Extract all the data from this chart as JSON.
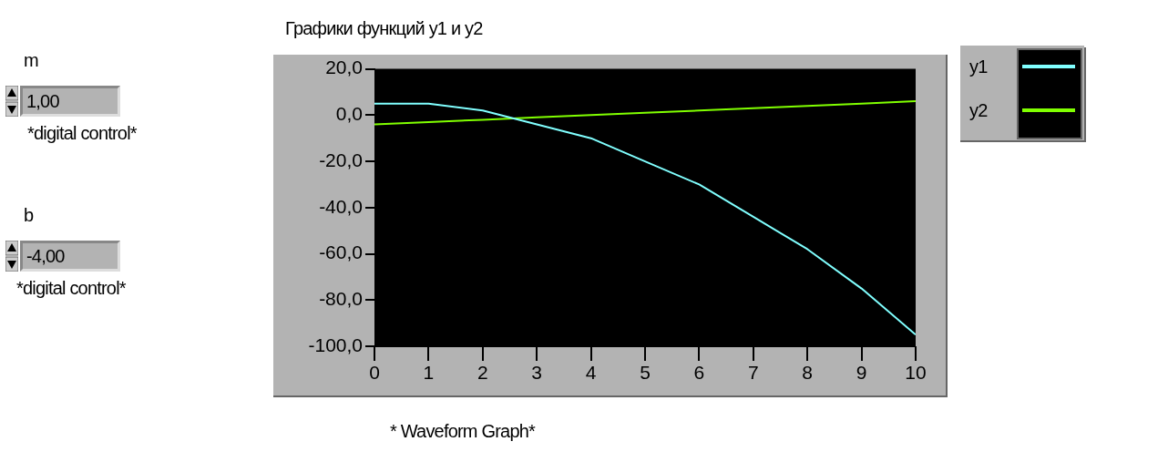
{
  "chart_data": {
    "type": "line",
    "title": "Графики функций y1 и y2",
    "x": [
      0,
      1,
      2,
      3,
      4,
      5,
      6,
      7,
      8,
      9,
      10
    ],
    "series": [
      {
        "name": "y1",
        "color": "#80ffff",
        "values": [
          5,
          5,
          2,
          -4,
          -10,
          -20,
          -30,
          -44,
          -58,
          -75,
          -95
        ]
      },
      {
        "name": "y2",
        "color": "#80ff00",
        "values": [
          -4,
          -3,
          -2,
          -1,
          0,
          1,
          2,
          3,
          4,
          5,
          6
        ]
      }
    ],
    "xlim": [
      0,
      10
    ],
    "xticks": [
      0,
      1,
      2,
      3,
      4,
      5,
      6,
      7,
      8,
      9,
      10
    ],
    "ylim": [
      -100,
      20
    ],
    "yticks": [
      {
        "value": -100,
        "label": "-100,0"
      },
      {
        "value": -80,
        "label": "-80,0"
      },
      {
        "value": -60,
        "label": "-60,0"
      },
      {
        "value": -40,
        "label": "-40,0"
      },
      {
        "value": -20,
        "label": "-20,0"
      },
      {
        "value": 0,
        "label": "0,0"
      },
      {
        "value": 20,
        "label": "20,0"
      }
    ],
    "grid": false,
    "legend": "top right",
    "marker": "none",
    "line_style": "solid",
    "annotations": [
      "m",
      "1,00",
      "*digital control*",
      "b",
      "-4,00",
      "*digital control*",
      "* Waveform Graph*"
    ]
  }
}
